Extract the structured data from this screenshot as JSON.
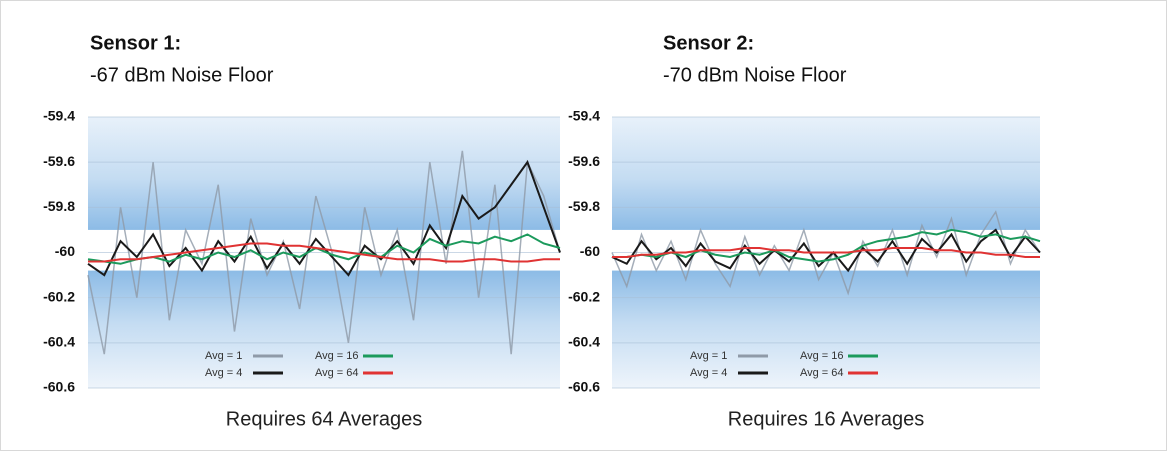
{
  "chart_data": [
    {
      "type": "line",
      "title": "Sensor 1:",
      "subtitle": "-67 dBm Noise Floor",
      "caption": "Requires 64 Averages",
      "ylim": [
        -60.6,
        -59.4
      ],
      "yticks": [
        -59.4,
        -59.6,
        -59.8,
        -60,
        -60.2,
        -60.4,
        -60.6
      ],
      "series": [
        {
          "name": "Avg = 1",
          "color": "#8f9aa8",
          "values": [
            -60.1,
            -60.45,
            -59.8,
            -60.2,
            -59.6,
            -60.3,
            -59.9,
            -60.05,
            -59.7,
            -60.35,
            -59.85,
            -60.1,
            -59.95,
            -60.25,
            -59.75,
            -60.0,
            -60.4,
            -59.8,
            -60.1,
            -59.9,
            -60.3,
            -59.6,
            -60.05,
            -59.55,
            -60.2,
            -59.7,
            -60.45,
            -59.6,
            -59.75,
            -60.0
          ]
        },
        {
          "name": "Avg = 4",
          "color": "#1a1a1a",
          "values": [
            -60.05,
            -60.1,
            -59.95,
            -60.02,
            -59.92,
            -60.06,
            -59.98,
            -60.08,
            -59.95,
            -60.04,
            -59.93,
            -60.07,
            -59.96,
            -60.05,
            -59.94,
            -60.02,
            -60.1,
            -59.97,
            -60.03,
            -59.95,
            -60.05,
            -59.88,
            -59.98,
            -59.75,
            -59.85,
            -59.8,
            -59.7,
            -59.6,
            -59.8,
            -60.0
          ]
        },
        {
          "name": "Avg = 16",
          "color": "#1c9a5c",
          "values": [
            -60.03,
            -60.04,
            -60.05,
            -60.03,
            -60.02,
            -60.04,
            -60.01,
            -60.03,
            -60.0,
            -60.02,
            -59.99,
            -60.03,
            -60.0,
            -60.02,
            -59.98,
            -60.01,
            -60.03,
            -60.0,
            -60.02,
            -59.97,
            -60.0,
            -59.94,
            -59.97,
            -59.95,
            -59.96,
            -59.93,
            -59.95,
            -59.92,
            -59.96,
            -59.98
          ]
        },
        {
          "name": "Avg = 64",
          "color": "#e03333",
          "values": [
            -60.04,
            -60.04,
            -60.03,
            -60.03,
            -60.02,
            -60.01,
            -60.0,
            -59.99,
            -59.98,
            -59.97,
            -59.96,
            -59.96,
            -59.97,
            -59.97,
            -59.98,
            -59.99,
            -60.0,
            -60.01,
            -60.02,
            -60.03,
            -60.03,
            -60.03,
            -60.04,
            -60.04,
            -60.03,
            -60.03,
            -60.04,
            -60.04,
            -60.03,
            -60.03
          ]
        }
      ]
    },
    {
      "type": "line",
      "title": "Sensor 2:",
      "subtitle": "-70 dBm Noise Floor",
      "caption": "Requires 16 Averages",
      "ylim": [
        -60.6,
        -59.4
      ],
      "yticks": [
        -59.4,
        -59.6,
        -59.8,
        -60,
        -60.2,
        -60.4,
        -60.6
      ],
      "series": [
        {
          "name": "Avg = 1",
          "color": "#8f9aa8",
          "values": [
            -60.0,
            -60.15,
            -59.92,
            -60.08,
            -59.95,
            -60.12,
            -59.9,
            -60.05,
            -60.15,
            -59.93,
            -60.1,
            -59.97,
            -60.08,
            -59.9,
            -60.12,
            -60.0,
            -60.18,
            -59.95,
            -60.06,
            -59.9,
            -60.1,
            -59.88,
            -60.02,
            -59.85,
            -60.1,
            -59.92,
            -59.82,
            -60.05,
            -59.9,
            -60.0
          ]
        },
        {
          "name": "Avg = 4",
          "color": "#1a1a1a",
          "values": [
            -60.02,
            -60.05,
            -59.95,
            -60.03,
            -59.98,
            -60.06,
            -59.96,
            -60.04,
            -60.07,
            -59.97,
            -60.05,
            -59.99,
            -60.04,
            -59.96,
            -60.06,
            -60.0,
            -60.08,
            -59.98,
            -60.04,
            -59.95,
            -60.05,
            -59.94,
            -60.0,
            -59.92,
            -60.04,
            -59.95,
            -59.9,
            -60.02,
            -59.93,
            -60.0
          ]
        },
        {
          "name": "Avg = 16",
          "color": "#1c9a5c",
          "values": [
            -60.02,
            -60.02,
            -60.01,
            -60.02,
            -60.0,
            -60.02,
            -59.99,
            -60.01,
            -60.02,
            -60.0,
            -60.01,
            -59.99,
            -60.02,
            -60.03,
            -60.04,
            -60.03,
            -60.01,
            -59.97,
            -59.95,
            -59.94,
            -59.93,
            -59.91,
            -59.92,
            -59.9,
            -59.91,
            -59.93,
            -59.92,
            -59.94,
            -59.93,
            -59.95
          ]
        },
        {
          "name": "Avg = 64",
          "color": "#e03333",
          "values": [
            -60.02,
            -60.02,
            -60.01,
            -60.01,
            -60.0,
            -60.0,
            -59.99,
            -59.99,
            -59.99,
            -59.98,
            -59.98,
            -59.99,
            -59.99,
            -60.0,
            -60.0,
            -60.0,
            -60.0,
            -59.99,
            -59.99,
            -59.98,
            -59.98,
            -59.98,
            -59.99,
            -59.99,
            -60.0,
            -60.0,
            -60.01,
            -60.01,
            -60.02,
            -60.02
          ]
        }
      ]
    }
  ]
}
